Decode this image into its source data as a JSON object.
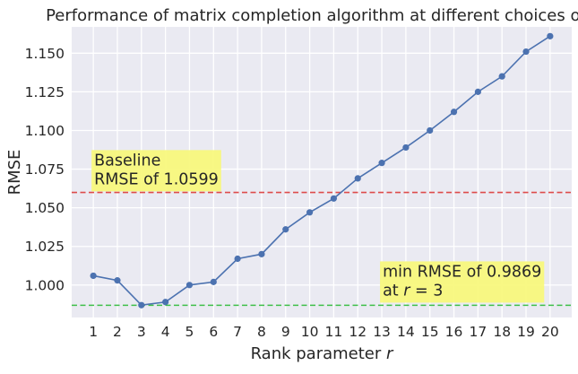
{
  "chart_data": {
    "type": "line",
    "title": "Performance of matrix completion algorithm at different choices of r",
    "xlabel": "Rank parameter r",
    "ylabel": "RMSE",
    "x": [
      1,
      2,
      3,
      4,
      5,
      6,
      7,
      8,
      9,
      10,
      11,
      12,
      13,
      14,
      15,
      16,
      17,
      18,
      19,
      20
    ],
    "series": [
      {
        "values": [
          1.006,
          1.003,
          0.987,
          0.989,
          1.0,
          1.002,
          1.017,
          1.02,
          1.036,
          1.047,
          1.056,
          1.069,
          1.079,
          1.089,
          1.1,
          1.112,
          1.125,
          1.135,
          1.151,
          1.161
        ],
        "color": "#4c72b0"
      }
    ],
    "reference_lines": [
      {
        "y": 1.0599,
        "color": "#dd4b4b",
        "style": "dashed"
      },
      {
        "y": 0.9869,
        "color": "#3fbf4a",
        "style": "dashed"
      }
    ],
    "annotations": [
      {
        "line1": "Baseline",
        "line2": "RMSE of 1.0599",
        "x": 1,
        "y": 1.067
      },
      {
        "line1": "min RMSE of 0.9869",
        "line2": "at r = 3",
        "x": 13,
        "y": 0.995
      }
    ],
    "annotation_color": "#f7f77a",
    "xlim": [
      0.1,
      20.9
    ],
    "ylim": [
      0.979,
      1.167
    ],
    "xticks": [
      "1",
      "2",
      "3",
      "4",
      "5",
      "6",
      "7",
      "8",
      "9",
      "10",
      "11",
      "12",
      "13",
      "14",
      "15",
      "16",
      "17",
      "18",
      "19",
      "20"
    ],
    "yticks": [
      "1.000",
      "1.025",
      "1.050",
      "1.075",
      "1.100",
      "1.125",
      "1.150"
    ],
    "ytick_values": [
      1.0,
      1.025,
      1.05,
      1.075,
      1.1,
      1.125,
      1.15
    ],
    "grid": true,
    "background": "#eaeaf2",
    "grid_color": "#ffffff"
  }
}
